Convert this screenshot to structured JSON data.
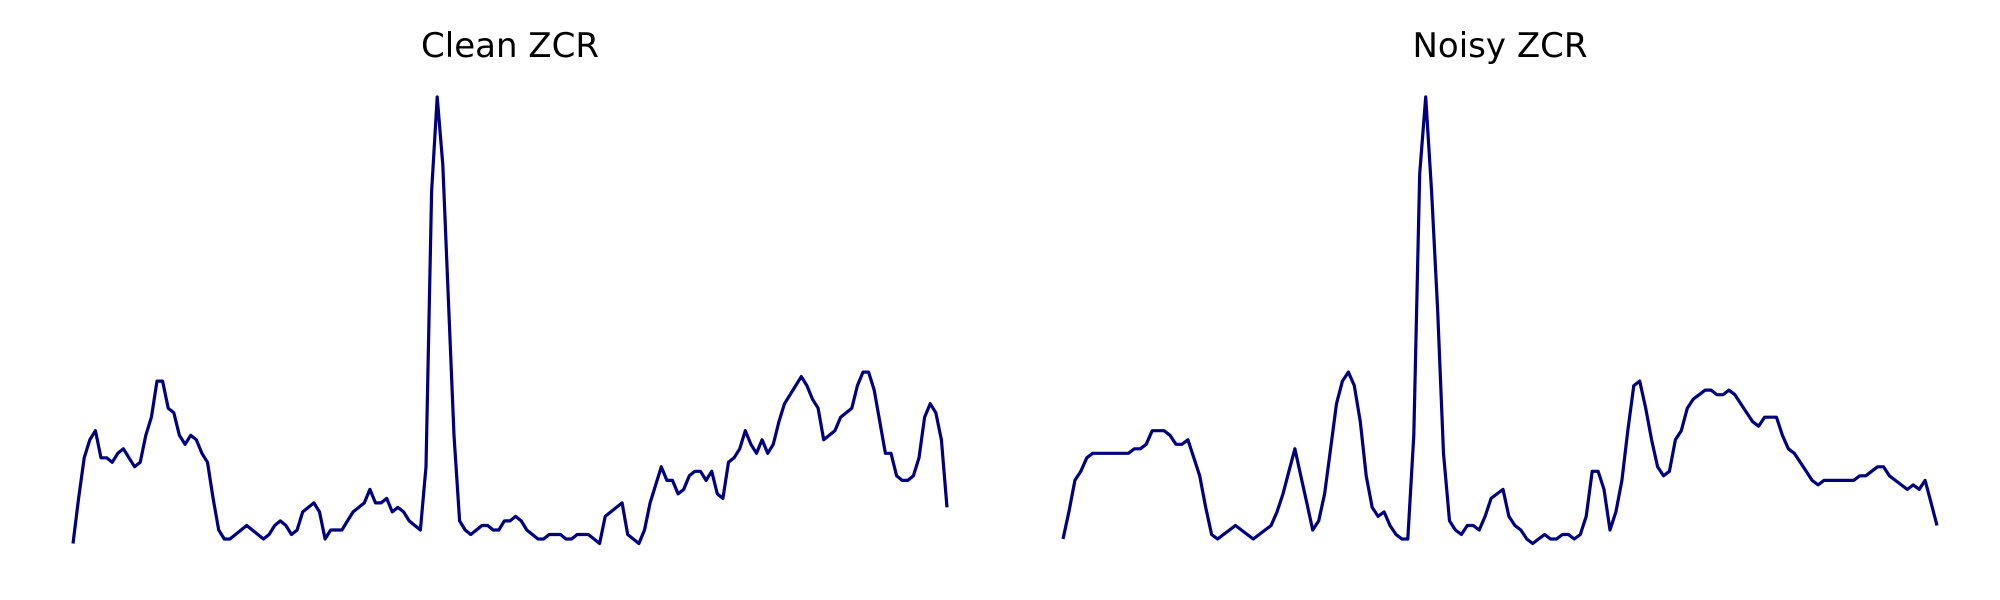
{
  "figure": {
    "background": "#ffffff",
    "line_color": "#00007f"
  },
  "chart_data": [
    {
      "type": "line",
      "title": "Clean ZCR",
      "xlabel": "",
      "ylabel": "",
      "axes_visible": false,
      "grid": false,
      "ylim": [
        0,
        1
      ],
      "series": [
        {
          "values": [
            0.01,
            0.11,
            0.2,
            0.24,
            0.26,
            0.2,
            0.2,
            0.19,
            0.21,
            0.22,
            0.2,
            0.18,
            0.19,
            0.25,
            0.29,
            0.37,
            0.37,
            0.31,
            0.3,
            0.25,
            0.23,
            0.25,
            0.24,
            0.21,
            0.19,
            0.11,
            0.04,
            0.02,
            0.02,
            0.03,
            0.04,
            0.05,
            0.04,
            0.03,
            0.02,
            0.03,
            0.05,
            0.06,
            0.05,
            0.03,
            0.04,
            0.08,
            0.09,
            0.1,
            0.08,
            0.02,
            0.04,
            0.04,
            0.04,
            0.06,
            0.08,
            0.09,
            0.1,
            0.13,
            0.1,
            0.1,
            0.11,
            0.08,
            0.09,
            0.08,
            0.06,
            0.05,
            0.04,
            0.18,
            0.79,
            1.0,
            0.85,
            0.55,
            0.25,
            0.06,
            0.04,
            0.03,
            0.04,
            0.05,
            0.05,
            0.04,
            0.04,
            0.06,
            0.06,
            0.07,
            0.06,
            0.04,
            0.03,
            0.02,
            0.02,
            0.03,
            0.03,
            0.03,
            0.02,
            0.02,
            0.03,
            0.03,
            0.03,
            0.02,
            0.01,
            0.07,
            0.08,
            0.09,
            0.1,
            0.03,
            0.02,
            0.01,
            0.04,
            0.1,
            0.14,
            0.18,
            0.15,
            0.15,
            0.12,
            0.13,
            0.16,
            0.17,
            0.17,
            0.15,
            0.17,
            0.12,
            0.11,
            0.19,
            0.2,
            0.22,
            0.26,
            0.23,
            0.21,
            0.24,
            0.21,
            0.23,
            0.28,
            0.32,
            0.34,
            0.36,
            0.38,
            0.36,
            0.33,
            0.31,
            0.24,
            0.25,
            0.26,
            0.29,
            0.3,
            0.31,
            0.36,
            0.39,
            0.39,
            0.35,
            0.28,
            0.21,
            0.21,
            0.16,
            0.15,
            0.15,
            0.16,
            0.2,
            0.29,
            0.32,
            0.3,
            0.24,
            0.09
          ]
        }
      ]
    },
    {
      "type": "line",
      "title": "Noisy ZCR",
      "xlabel": "",
      "ylabel": "",
      "axes_visible": false,
      "grid": false,
      "ylim": [
        0,
        1
      ],
      "series": [
        {
          "values": [
            0.02,
            0.08,
            0.15,
            0.17,
            0.2,
            0.21,
            0.21,
            0.21,
            0.21,
            0.21,
            0.21,
            0.21,
            0.22,
            0.22,
            0.23,
            0.26,
            0.26,
            0.26,
            0.25,
            0.23,
            0.23,
            0.24,
            0.2,
            0.16,
            0.09,
            0.03,
            0.02,
            0.03,
            0.04,
            0.05,
            0.04,
            0.03,
            0.02,
            0.03,
            0.04,
            0.05,
            0.08,
            0.12,
            0.17,
            0.22,
            0.16,
            0.1,
            0.04,
            0.06,
            0.12,
            0.22,
            0.32,
            0.37,
            0.39,
            0.36,
            0.28,
            0.16,
            0.09,
            0.07,
            0.08,
            0.05,
            0.03,
            0.02,
            0.02,
            0.25,
            0.83,
            1.0,
            0.79,
            0.53,
            0.21,
            0.06,
            0.04,
            0.03,
            0.05,
            0.05,
            0.04,
            0.07,
            0.11,
            0.12,
            0.13,
            0.07,
            0.05,
            0.04,
            0.02,
            0.01,
            0.02,
            0.03,
            0.02,
            0.02,
            0.03,
            0.03,
            0.02,
            0.03,
            0.07,
            0.17,
            0.17,
            0.13,
            0.04,
            0.08,
            0.15,
            0.26,
            0.36,
            0.37,
            0.31,
            0.24,
            0.18,
            0.16,
            0.17,
            0.24,
            0.26,
            0.31,
            0.33,
            0.34,
            0.35,
            0.35,
            0.34,
            0.34,
            0.35,
            0.34,
            0.32,
            0.3,
            0.28,
            0.27,
            0.29,
            0.29,
            0.29,
            0.25,
            0.22,
            0.21,
            0.19,
            0.17,
            0.15,
            0.14,
            0.15,
            0.15,
            0.15,
            0.15,
            0.15,
            0.15,
            0.16,
            0.16,
            0.17,
            0.18,
            0.18,
            0.16,
            0.15,
            0.14,
            0.13,
            0.14,
            0.13,
            0.15,
            0.1,
            0.05
          ]
        }
      ]
    }
  ]
}
